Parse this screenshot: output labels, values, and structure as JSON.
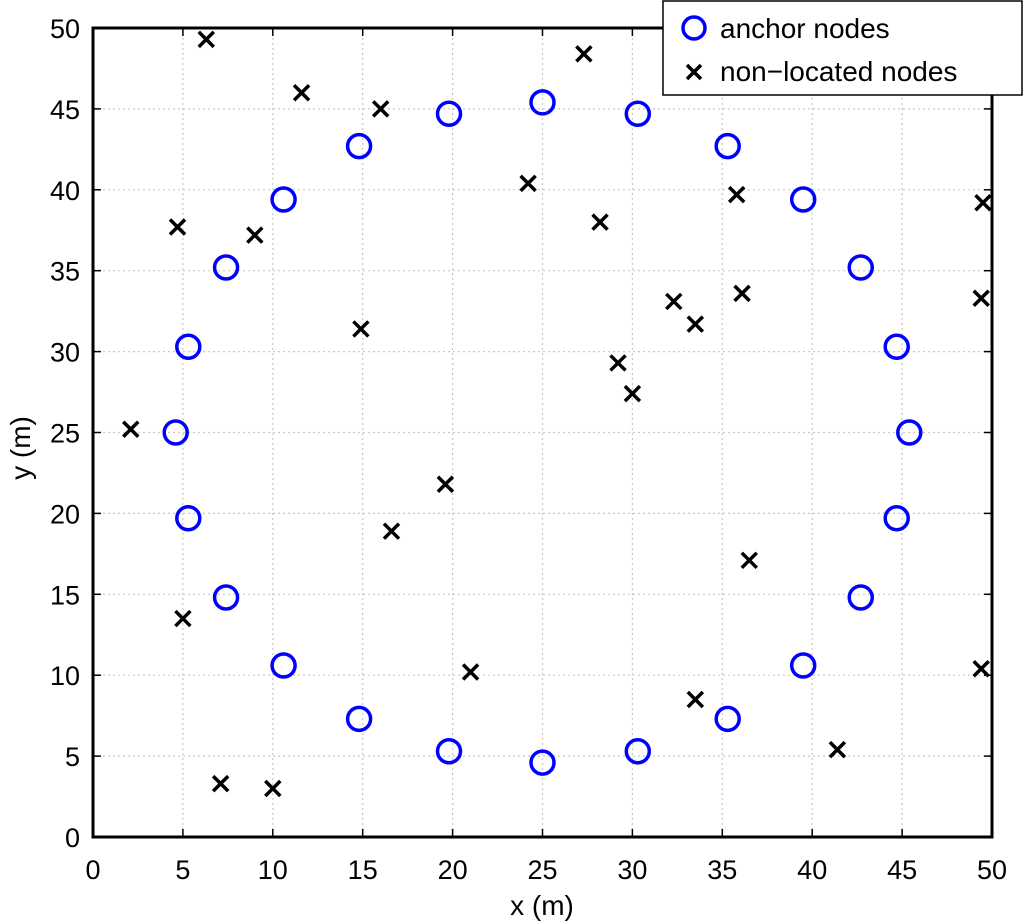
{
  "chart_data": {
    "type": "scatter",
    "title": "",
    "xlabel": "x (m)",
    "ylabel": "y (m)",
    "xlim": [
      0,
      50
    ],
    "ylim": [
      0,
      50
    ],
    "xticks": [
      "0",
      "5",
      "10",
      "15",
      "20",
      "25",
      "30",
      "35",
      "40",
      "45",
      "50"
    ],
    "yticks": [
      "0",
      "5",
      "10",
      "15",
      "20",
      "25",
      "30",
      "35",
      "40",
      "45",
      "50"
    ],
    "grid": true,
    "legend_position": "top-right",
    "series": [
      {
        "name": "anchor nodes",
        "marker": "circle",
        "color": "#0000ff",
        "points": [
          [
            25.0,
            45.4
          ],
          [
            30.3,
            44.7
          ],
          [
            35.3,
            42.7
          ],
          [
            39.5,
            39.4
          ],
          [
            42.7,
            35.2
          ],
          [
            44.7,
            30.3
          ],
          [
            45.4,
            25.0
          ],
          [
            44.7,
            19.7
          ],
          [
            42.7,
            14.8
          ],
          [
            39.5,
            10.6
          ],
          [
            35.3,
            7.3
          ],
          [
            30.3,
            5.3
          ],
          [
            25.0,
            4.6
          ],
          [
            19.8,
            5.3
          ],
          [
            14.8,
            7.3
          ],
          [
            10.6,
            10.6
          ],
          [
            7.4,
            14.8
          ],
          [
            5.3,
            19.7
          ],
          [
            4.6,
            25.0
          ],
          [
            5.3,
            30.3
          ],
          [
            7.4,
            35.2
          ],
          [
            10.6,
            39.4
          ],
          [
            14.8,
            42.7
          ],
          [
            19.8,
            44.7
          ]
        ]
      },
      {
        "name": "non−located nodes",
        "marker": "x",
        "color": "#000000",
        "points": [
          [
            6.3,
            49.3
          ],
          [
            11.6,
            46.0
          ],
          [
            16.0,
            45.0
          ],
          [
            27.3,
            48.4
          ],
          [
            4.7,
            37.7
          ],
          [
            9.0,
            37.2
          ],
          [
            24.2,
            40.4
          ],
          [
            28.2,
            38.0
          ],
          [
            35.8,
            39.7
          ],
          [
            49.5,
            39.2
          ],
          [
            32.3,
            33.1
          ],
          [
            36.1,
            33.6
          ],
          [
            33.5,
            31.7
          ],
          [
            49.4,
            33.3
          ],
          [
            14.9,
            31.4
          ],
          [
            29.2,
            29.3
          ],
          [
            30.0,
            27.4
          ],
          [
            2.1,
            25.2
          ],
          [
            19.6,
            21.8
          ],
          [
            16.6,
            18.9
          ],
          [
            36.5,
            17.1
          ],
          [
            5.0,
            13.5
          ],
          [
            21.0,
            10.2
          ],
          [
            33.5,
            8.5
          ],
          [
            49.4,
            10.4
          ],
          [
            41.4,
            5.4
          ],
          [
            7.1,
            3.3
          ],
          [
            10.0,
            3.0
          ]
        ]
      }
    ]
  }
}
